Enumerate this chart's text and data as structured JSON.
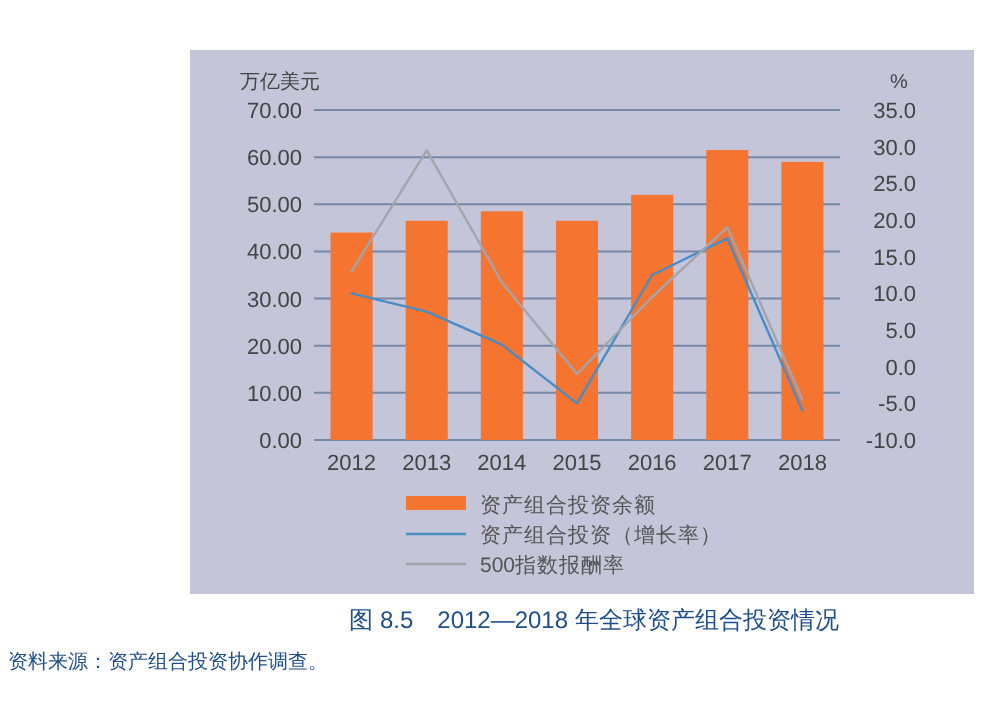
{
  "chart_data": {
    "type": "bar",
    "title": "图 8.5　2012—2018 年全球资产组合投资情况",
    "ylabel": "万亿美元",
    "y2label": "%",
    "categories": [
      "2012",
      "2013",
      "2014",
      "2015",
      "2016",
      "2017",
      "2018"
    ],
    "series": [
      {
        "name": "资产组合投资余额",
        "color": "#f47430",
        "values": [
          44,
          46.5,
          48.5,
          46.5,
          52,
          61.5,
          59
        ]
      },
      {
        "name": "资产组合投资（增长率）",
        "type": "line",
        "axis": "y2",
        "color": "#4a8cc4",
        "values": [
          10,
          7.5,
          3,
          -5,
          12.5,
          17.5,
          -6
        ]
      },
      {
        "name": "500指数报酬率",
        "type": "line",
        "axis": "y2",
        "color": "#a4a4ac",
        "values": [
          13,
          29.5,
          11.5,
          -1,
          9.5,
          19,
          -4.5
        ]
      }
    ],
    "ylim": [
      0,
      70
    ],
    "yticks": [
      {
        "value": 0,
        "label": "0.00"
      },
      {
        "value": 10,
        "label": "10.00"
      },
      {
        "value": 20,
        "label": "20.00"
      },
      {
        "value": 30,
        "label": "30.00"
      },
      {
        "value": 40,
        "label": "40.00"
      },
      {
        "value": 50,
        "label": "50.00"
      },
      {
        "value": 60,
        "label": "60.00"
      },
      {
        "value": 70,
        "label": "70.00"
      }
    ],
    "y2lim": [
      -10,
      35
    ],
    "y2ticks": [
      {
        "value": -10,
        "label": "-10.0"
      },
      {
        "value": -5,
        "label": "-5.0"
      },
      {
        "value": 0,
        "label": "0.0"
      },
      {
        "value": 5,
        "label": "5.0"
      },
      {
        "value": 10,
        "label": "10.0"
      },
      {
        "value": 15,
        "label": "15.0"
      },
      {
        "value": 20,
        "label": "20.0"
      },
      {
        "value": 25,
        "label": "25.0"
      },
      {
        "value": 30,
        "label": "30.0"
      },
      {
        "value": 35,
        "label": "35.0"
      }
    ],
    "grid": "y",
    "legend": "bottom",
    "annotations": [
      "资料来源：资产组合投资协作调查。"
    ]
  }
}
